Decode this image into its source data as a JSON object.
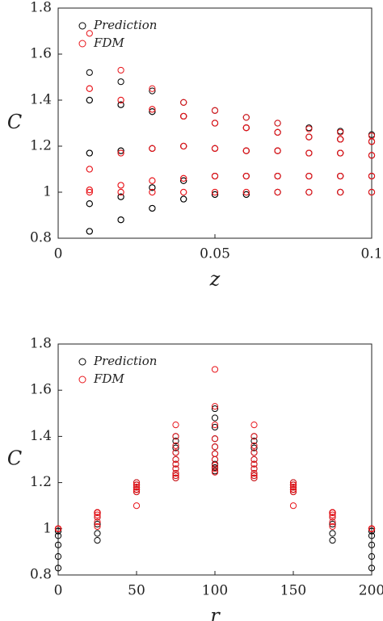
{
  "chart_data": [
    {
      "type": "scatter",
      "x_label": "z",
      "y_label": "C",
      "xlim": [
        0,
        0.1
      ],
      "ylim": [
        0.8,
        1.8
      ],
      "xticks": [
        0,
        0.05,
        0.1
      ],
      "yticks": [
        0.8,
        1,
        1.2,
        1.4,
        1.6,
        1.8
      ],
      "legend": "upper left",
      "series": [
        {
          "name": "Prediction",
          "color": "#000000",
          "x": [
            0.01,
            0.01,
            0.01,
            0.01,
            0.01,
            0.01,
            0.01,
            0.01,
            0.01,
            0.02,
            0.02,
            0.02,
            0.02,
            0.02,
            0.02,
            0.02,
            0.02,
            0.02,
            0.03,
            0.03,
            0.03,
            0.03,
            0.03,
            0.03,
            0.03,
            0.03,
            0.03,
            0.04,
            0.04,
            0.04,
            0.04,
            0.04,
            0.04,
            0.04,
            0.04,
            0.04,
            0.05,
            0.05,
            0.05,
            0.05,
            0.05,
            0.05,
            0.05,
            0.05,
            0.05,
            0.06,
            0.06,
            0.06,
            0.06,
            0.06,
            0.06,
            0.06,
            0.06,
            0.06,
            0.07,
            0.07,
            0.07,
            0.07,
            0.07,
            0.07,
            0.07,
            0.07,
            0.07,
            0.08,
            0.08,
            0.08,
            0.08,
            0.08,
            0.08,
            0.08,
            0.08,
            0.08,
            0.09,
            0.09,
            0.09,
            0.09,
            0.09,
            0.09,
            0.09,
            0.09,
            0.09,
            0.1,
            0.1,
            0.1,
            0.1,
            0.1,
            0.1,
            0.1,
            0.1,
            0.1
          ],
          "values": [
            0.83,
            0.95,
            1.17,
            1.4,
            1.52,
            1.4,
            1.17,
            0.95,
            0.83,
            0.88,
            0.98,
            1.18,
            1.38,
            1.48,
            1.38,
            1.18,
            0.98,
            0.88,
            0.93,
            1.02,
            1.19,
            1.35,
            1.44,
            1.35,
            1.19,
            1.02,
            0.93,
            0.97,
            1.05,
            1.2,
            1.33,
            1.39,
            1.33,
            1.2,
            1.05,
            0.97,
            0.99,
            1.07,
            1.19,
            1.3,
            1.355,
            1.3,
            1.19,
            1.07,
            0.99,
            0.99,
            1.07,
            1.18,
            1.28,
            1.325,
            1.28,
            1.18,
            1.07,
            0.99,
            1.0,
            1.07,
            1.18,
            1.26,
            1.3,
            1.26,
            1.18,
            1.07,
            1.0,
            1.0,
            1.07,
            1.17,
            1.24,
            1.28,
            1.24,
            1.17,
            1.07,
            1.0,
            1.0,
            1.07,
            1.17,
            1.23,
            1.265,
            1.23,
            1.17,
            1.07,
            1.0,
            1.0,
            1.07,
            1.16,
            1.22,
            1.25,
            1.22,
            1.16,
            1.07,
            1.0
          ]
        },
        {
          "name": "FDM",
          "color": "#e8141a",
          "x": [
            0.01,
            0.01,
            0.01,
            0.01,
            0.01,
            0.01,
            0.01,
            0.01,
            0.01,
            0.02,
            0.02,
            0.02,
            0.02,
            0.02,
            0.02,
            0.02,
            0.02,
            0.02,
            0.03,
            0.03,
            0.03,
            0.03,
            0.03,
            0.03,
            0.03,
            0.03,
            0.03,
            0.04,
            0.04,
            0.04,
            0.04,
            0.04,
            0.04,
            0.04,
            0.04,
            0.04,
            0.05,
            0.05,
            0.05,
            0.05,
            0.05,
            0.05,
            0.05,
            0.05,
            0.05,
            0.06,
            0.06,
            0.06,
            0.06,
            0.06,
            0.06,
            0.06,
            0.06,
            0.06,
            0.07,
            0.07,
            0.07,
            0.07,
            0.07,
            0.07,
            0.07,
            0.07,
            0.07,
            0.08,
            0.08,
            0.08,
            0.08,
            0.08,
            0.08,
            0.08,
            0.08,
            0.08,
            0.09,
            0.09,
            0.09,
            0.09,
            0.09,
            0.09,
            0.09,
            0.09,
            0.09,
            0.1,
            0.1,
            0.1,
            0.1,
            0.1,
            0.1,
            0.1,
            0.1,
            0.1
          ],
          "values": [
            1.0,
            1.01,
            1.1,
            1.45,
            1.69,
            1.45,
            1.1,
            1.01,
            1.0,
            1.0,
            1.03,
            1.17,
            1.4,
            1.53,
            1.4,
            1.17,
            1.03,
            1.0,
            1.0,
            1.05,
            1.19,
            1.36,
            1.45,
            1.36,
            1.19,
            1.05,
            1.0,
            1.0,
            1.06,
            1.2,
            1.33,
            1.39,
            1.33,
            1.2,
            1.06,
            1.0,
            1.0,
            1.07,
            1.19,
            1.3,
            1.355,
            1.3,
            1.19,
            1.07,
            1.0,
            1.0,
            1.07,
            1.18,
            1.28,
            1.325,
            1.28,
            1.18,
            1.07,
            1.0,
            1.0,
            1.07,
            1.18,
            1.26,
            1.3,
            1.26,
            1.18,
            1.07,
            1.0,
            1.0,
            1.07,
            1.17,
            1.24,
            1.275,
            1.24,
            1.17,
            1.07,
            1.0,
            1.0,
            1.07,
            1.17,
            1.23,
            1.26,
            1.23,
            1.17,
            1.07,
            1.0,
            1.0,
            1.07,
            1.16,
            1.22,
            1.245,
            1.22,
            1.16,
            1.07,
            1.0
          ]
        }
      ]
    },
    {
      "type": "scatter",
      "x_label": "r",
      "y_label": "C",
      "xlim": [
        0,
        200
      ],
      "ylim": [
        0.8,
        1.8
      ],
      "xticks": [
        0,
        50,
        100,
        150,
        200
      ],
      "yticks": [
        0.8,
        1,
        1.2,
        1.4,
        1.6,
        1.8
      ],
      "legend": "upper left",
      "series": [
        {
          "name": "Prediction",
          "color": "#000000",
          "x": [
            0,
            25,
            50,
            75,
            100,
            125,
            150,
            175,
            200,
            0,
            25,
            50,
            75,
            100,
            125,
            150,
            175,
            200,
            0,
            25,
            50,
            75,
            100,
            125,
            150,
            175,
            200,
            0,
            25,
            50,
            75,
            100,
            125,
            150,
            175,
            200,
            0,
            25,
            50,
            75,
            100,
            125,
            150,
            175,
            200,
            0,
            25,
            50,
            75,
            100,
            125,
            150,
            175,
            200,
            0,
            25,
            50,
            75,
            100,
            125,
            150,
            175,
            200,
            0,
            25,
            50,
            75,
            100,
            125,
            150,
            175,
            200,
            0,
            25,
            50,
            75,
            100,
            125,
            150,
            175,
            200,
            0,
            25,
            50,
            75,
            100,
            125,
            150,
            175,
            200
          ],
          "values": [
            0.83,
            0.95,
            1.17,
            1.4,
            1.52,
            1.4,
            1.17,
            0.95,
            0.83,
            0.88,
            0.98,
            1.18,
            1.38,
            1.48,
            1.38,
            1.18,
            0.98,
            0.88,
            0.93,
            1.02,
            1.19,
            1.35,
            1.44,
            1.35,
            1.19,
            1.02,
            0.93,
            0.97,
            1.05,
            1.2,
            1.33,
            1.39,
            1.33,
            1.2,
            1.05,
            0.97,
            0.99,
            1.07,
            1.19,
            1.3,
            1.355,
            1.3,
            1.19,
            1.07,
            0.99,
            0.99,
            1.07,
            1.18,
            1.28,
            1.325,
            1.28,
            1.18,
            1.07,
            0.99,
            1.0,
            1.07,
            1.18,
            1.26,
            1.3,
            1.26,
            1.18,
            1.07,
            1.0,
            1.0,
            1.07,
            1.17,
            1.24,
            1.28,
            1.24,
            1.17,
            1.07,
            1.0,
            1.0,
            1.07,
            1.17,
            1.23,
            1.265,
            1.23,
            1.17,
            1.07,
            1.0,
            1.0,
            1.07,
            1.16,
            1.22,
            1.25,
            1.22,
            1.16,
            1.07,
            1.0
          ]
        },
        {
          "name": "FDM",
          "color": "#e8141a",
          "x": [
            0,
            25,
            50,
            75,
            100,
            125,
            150,
            175,
            200,
            0,
            25,
            50,
            75,
            100,
            125,
            150,
            175,
            200,
            0,
            25,
            50,
            75,
            100,
            125,
            150,
            175,
            200,
            0,
            25,
            50,
            75,
            100,
            125,
            150,
            175,
            200,
            0,
            25,
            50,
            75,
            100,
            125,
            150,
            175,
            200,
            0,
            25,
            50,
            75,
            100,
            125,
            150,
            175,
            200,
            0,
            25,
            50,
            75,
            100,
            125,
            150,
            175,
            200,
            0,
            25,
            50,
            75,
            100,
            125,
            150,
            175,
            200,
            0,
            25,
            50,
            75,
            100,
            125,
            150,
            175,
            200,
            0,
            25,
            50,
            75,
            100,
            125,
            150,
            175,
            200
          ],
          "values": [
            1.0,
            1.01,
            1.1,
            1.45,
            1.69,
            1.45,
            1.1,
            1.01,
            1.0,
            1.0,
            1.03,
            1.17,
            1.4,
            1.53,
            1.4,
            1.17,
            1.03,
            1.0,
            1.0,
            1.05,
            1.19,
            1.36,
            1.45,
            1.36,
            1.19,
            1.05,
            1.0,
            1.0,
            1.06,
            1.2,
            1.33,
            1.39,
            1.33,
            1.2,
            1.06,
            1.0,
            1.0,
            1.07,
            1.19,
            1.3,
            1.355,
            1.3,
            1.19,
            1.07,
            1.0,
            1.0,
            1.07,
            1.18,
            1.28,
            1.325,
            1.28,
            1.18,
            1.07,
            1.0,
            1.0,
            1.07,
            1.18,
            1.26,
            1.3,
            1.26,
            1.18,
            1.07,
            1.0,
            1.0,
            1.07,
            1.17,
            1.24,
            1.275,
            1.24,
            1.17,
            1.07,
            1.0,
            1.0,
            1.07,
            1.17,
            1.23,
            1.26,
            1.23,
            1.17,
            1.07,
            1.0,
            1.0,
            1.07,
            1.16,
            1.22,
            1.245,
            1.22,
            1.16,
            1.07,
            1.0
          ]
        }
      ]
    }
  ]
}
